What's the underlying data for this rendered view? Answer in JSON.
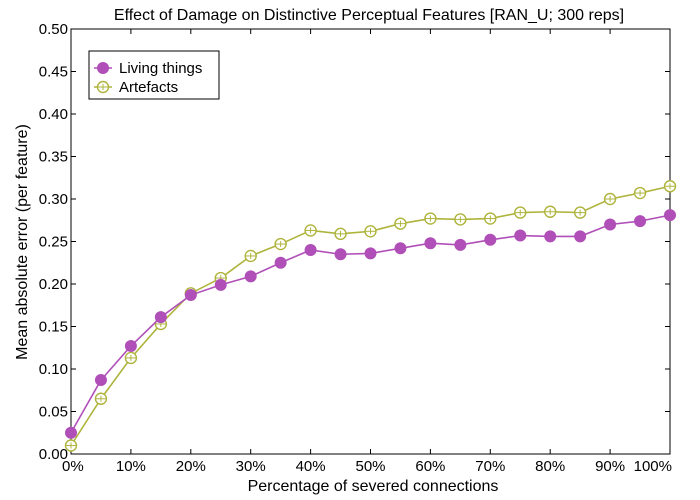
{
  "chart_data": {
    "type": "line",
    "title": "Effect of Damage on Distinctive Perceptual Features [RAN_U; 300 reps]",
    "xlabel": "Percentage of severed connections",
    "ylabel": "Mean absolute error (per feature)",
    "x": [
      0,
      5,
      10,
      15,
      20,
      25,
      30,
      35,
      40,
      45,
      50,
      55,
      60,
      65,
      70,
      75,
      80,
      85,
      90,
      95,
      100
    ],
    "xlim": [
      0,
      100
    ],
    "ylim": [
      0,
      0.5
    ],
    "x_ticks": [
      "0%",
      "10%",
      "20%",
      "30%",
      "40%",
      "50%",
      "60%",
      "70%",
      "80%",
      "90%",
      "100%"
    ],
    "y_ticks": [
      "0.00",
      "0.05",
      "0.10",
      "0.15",
      "0.20",
      "0.25",
      "0.30",
      "0.35",
      "0.40",
      "0.45",
      "0.50"
    ],
    "grid": false,
    "legend_position": "top-left",
    "series": [
      {
        "name": "Living things",
        "color": "#b04fb8",
        "marker": "filled-circle",
        "values": [
          0.025,
          0.087,
          0.127,
          0.161,
          0.187,
          0.199,
          0.209,
          0.225,
          0.24,
          0.235,
          0.236,
          0.242,
          0.248,
          0.246,
          0.252,
          0.257,
          0.256,
          0.256,
          0.27,
          0.274,
          0.281
        ]
      },
      {
        "name": "Artefacts",
        "color": "#aeb43c",
        "marker": "open-circle-crosshair",
        "values": [
          0.01,
          0.065,
          0.113,
          0.153,
          0.189,
          0.207,
          0.233,
          0.247,
          0.263,
          0.259,
          0.262,
          0.271,
          0.277,
          0.276,
          0.277,
          0.284,
          0.285,
          0.284,
          0.3,
          0.307,
          0.315
        ]
      }
    ]
  }
}
